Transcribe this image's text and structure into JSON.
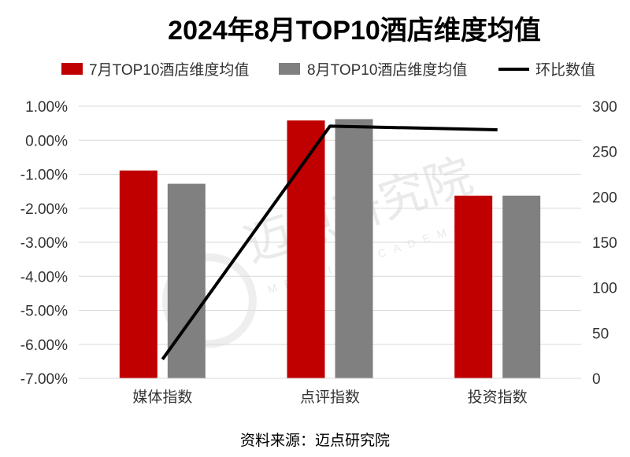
{
  "chart_data": {
    "type": "bar",
    "title": "2024年8月TOP10酒店维度均值",
    "categories": [
      "媒体指数",
      "点评指数",
      "投资指数"
    ],
    "series": [
      {
        "name": "7月TOP10酒店维度均值",
        "type": "bar",
        "axis": "left",
        "color": "#c00000",
        "values": [
          -0.89,
          0.58,
          -1.63
        ]
      },
      {
        "name": "8月TOP10酒店维度均值",
        "type": "bar",
        "axis": "left",
        "color": "#808080",
        "values": [
          -1.28,
          0.62,
          -1.63
        ]
      },
      {
        "name": "环比数值",
        "type": "line",
        "axis": "right",
        "color": "#000000",
        "values": [
          21,
          278,
          274
        ]
      }
    ],
    "y_left": {
      "min": -7,
      "max": 1,
      "ticks": [
        1,
        0,
        -1,
        -2,
        -3,
        -4,
        -5,
        -6,
        -7
      ],
      "tick_labels": [
        "1.00%",
        "0.00%",
        "-1.00%",
        "-2.00%",
        "-3.00%",
        "-4.00%",
        "-5.00%",
        "-6.00%",
        "-7.00%"
      ]
    },
    "y_right": {
      "min": 0,
      "max": 300,
      "ticks": [
        300,
        250,
        200,
        150,
        100,
        50,
        0
      ],
      "tick_labels": [
        "300",
        "250",
        "200",
        "150",
        "100",
        "50",
        "0"
      ]
    },
    "grid": true,
    "legend_position": "top"
  },
  "source": "资料来源：迈点研究院",
  "watermark": {
    "text": "迈点研究院",
    "sub": "MEADIN ACADEMY"
  }
}
